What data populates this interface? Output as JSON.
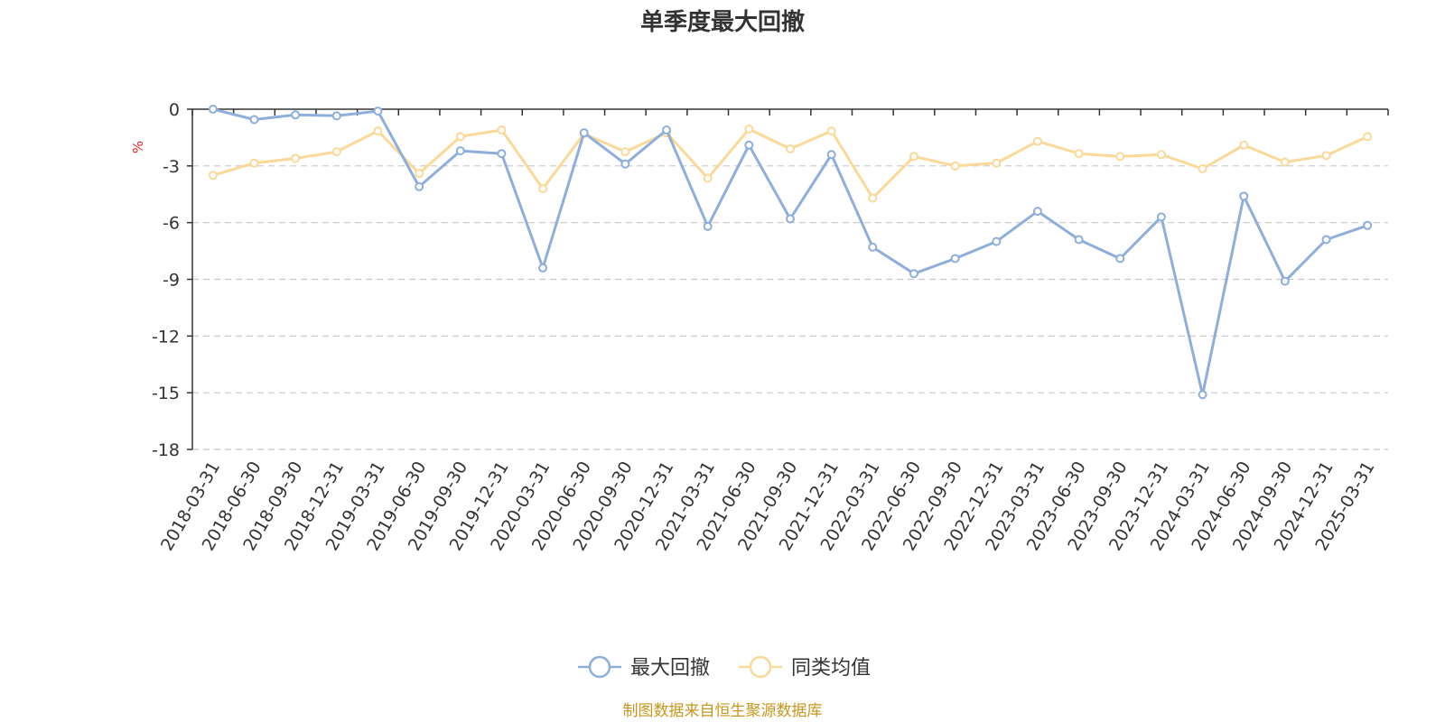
{
  "chart_data": {
    "type": "line",
    "title": "单季度最大回撤",
    "ylabel": "%",
    "ylim": [
      -18,
      0
    ],
    "yticks": [
      0,
      -3,
      -6,
      -9,
      -12,
      -15,
      -18
    ],
    "grid": "horizontal dashed",
    "legend_position": "bottom-center",
    "categories": [
      "2018-03-31",
      "2018-06-30",
      "2018-09-30",
      "2018-12-31",
      "2019-03-31",
      "2019-06-30",
      "2019-09-30",
      "2019-12-31",
      "2020-03-31",
      "2020-06-30",
      "2020-09-30",
      "2020-12-31",
      "2021-03-31",
      "2021-06-30",
      "2021-09-30",
      "2021-12-31",
      "2022-03-31",
      "2022-06-30",
      "2022-09-30",
      "2022-12-31",
      "2023-03-31",
      "2023-06-30",
      "2023-09-30",
      "2023-12-31",
      "2024-03-31",
      "2024-06-30",
      "2024-09-30",
      "2024-12-31",
      "2025-03-31"
    ],
    "series": [
      {
        "name": "最大回撤",
        "color": "#8eaedb",
        "values": [
          0,
          -0.55,
          -0.3,
          -0.35,
          -0.1,
          -4.1,
          -2.2,
          -2.35,
          -8.4,
          -1.25,
          -2.9,
          -1.1,
          -6.2,
          -1.9,
          -5.8,
          -2.4,
          -7.3,
          -8.7,
          -7.9,
          -7.0,
          -5.4,
          -6.9,
          -7.9,
          -5.7,
          -15.1,
          -4.6,
          -9.1,
          -6.9,
          -6.15
        ]
      },
      {
        "name": "同类均值",
        "color": "#fbd999",
        "values": [
          -3.5,
          -2.85,
          -2.6,
          -2.25,
          -1.15,
          -3.4,
          -1.45,
          -1.1,
          -4.2,
          -1.3,
          -2.25,
          -1.25,
          -3.65,
          -1.05,
          -2.1,
          -1.15,
          -4.7,
          -2.5,
          -3.0,
          -2.85,
          -1.7,
          -2.35,
          -2.5,
          -2.4,
          -3.15,
          -1.9,
          -2.8,
          -2.45,
          -1.45
        ]
      }
    ]
  },
  "footer": {
    "source": "制图数据来自恒生聚源数据库",
    "source_color": "#c8961e"
  },
  "unit_color": "#e8202a"
}
